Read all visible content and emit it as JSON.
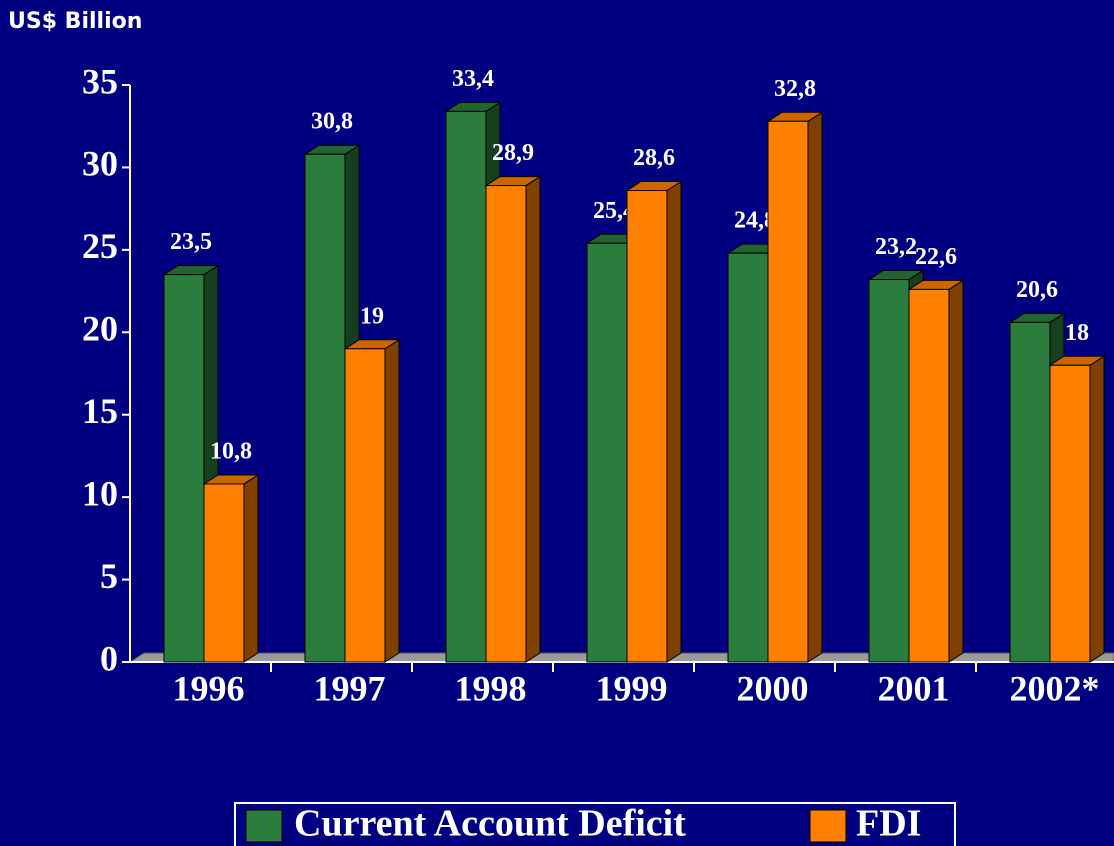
{
  "chart_data": {
    "type": "bar3d",
    "y_axis_label": "US$ Billion",
    "categories": [
      "1996",
      "1997",
      "1998",
      "1999",
      "2000",
      "2001",
      "2002*"
    ],
    "series": [
      {
        "name": "Current Account Deficit",
        "color": "#2a7d3c",
        "values": [
          23.5,
          30.8,
          33.4,
          25.4,
          24.8,
          23.2,
          20.6
        ],
        "value_labels": [
          "23,5",
          "30,8",
          "33,4",
          "25,4",
          "24,8",
          "23,2",
          "20,6"
        ]
      },
      {
        "name": "FDI",
        "color": "#ff8000",
        "values": [
          10.8,
          19,
          28.9,
          28.6,
          32.8,
          22.6,
          18
        ],
        "value_labels": [
          "10,8",
          "19",
          "28,9",
          "28,6",
          "32,8",
          "22,6",
          "18"
        ]
      }
    ],
    "ylim": [
      0,
      35
    ],
    "yticks": [
      0,
      5,
      10,
      15,
      20,
      25,
      30,
      35
    ],
    "legend": "bottom"
  }
}
